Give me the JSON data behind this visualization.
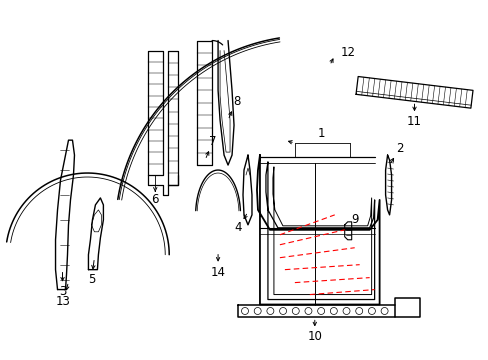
{
  "background_color": "#ffffff",
  "line_color": "#000000",
  "red_color": "#ff0000",
  "figsize": [
    4.89,
    3.6
  ],
  "dpi": 100,
  "xlim": [
    0,
    489
  ],
  "ylim": [
    0,
    360
  ]
}
